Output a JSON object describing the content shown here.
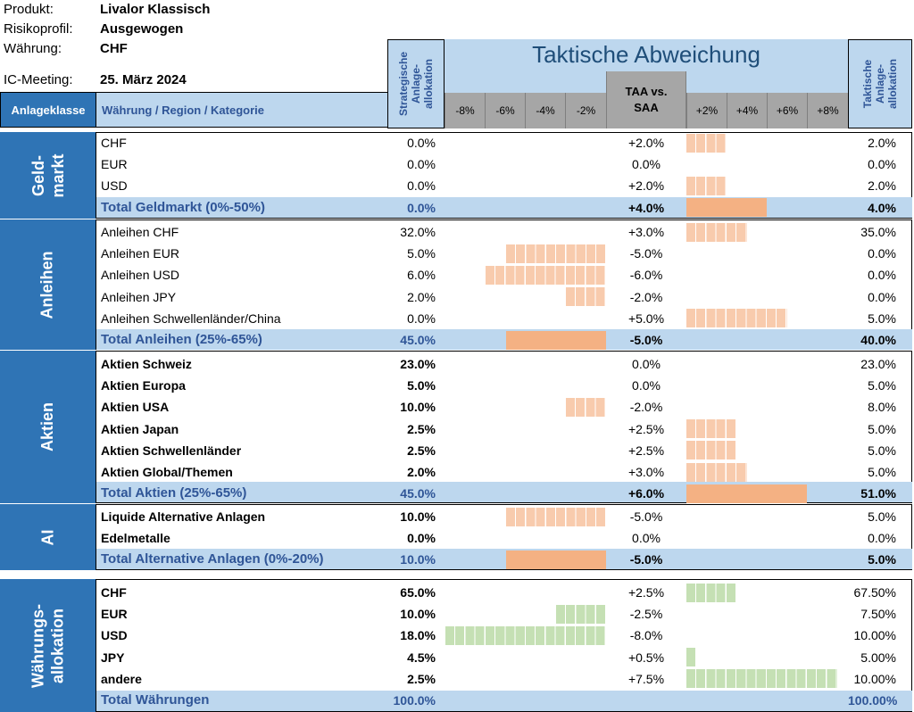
{
  "meta": {
    "produkt_label": "Produkt:",
    "produkt": "Livalor Klassisch",
    "risikoprofil_label": "Risikoprofil:",
    "risikoprofil": "Ausgewogen",
    "waehrung_label": "Währung:",
    "waehrung": "CHF",
    "ic_label": "IC-Meeting:",
    "ic_date": "25. März 2024"
  },
  "header": {
    "anlageklasse": "Anlageklasse",
    "kategorie": "Währung / Region / Kategorie",
    "strategische": "Strategische Anlage-allokation",
    "taktische_title": "Taktische Abweichung",
    "taa_vs_saa": "TAA vs. SAA",
    "taktische_alloc": "Taktische Anlage-allokation",
    "ticks_neg": [
      "-8%",
      "-6%",
      "-4%",
      "-2%"
    ],
    "ticks_pos": [
      "+2%",
      "+4%",
      "+6%",
      "+8%"
    ]
  },
  "colors": {
    "dark_blue": "#2f74b5",
    "light_blue": "#bdd7ee",
    "header_gray": "#a6a6a6",
    "bar_orange": "#f8cbad",
    "bar_orange_total": "#f4b183",
    "bar_green": "#c5e0b4",
    "total_text": "#2f5597"
  },
  "groups": {
    "geldmarkt": {
      "name": "Geld-markt",
      "rows": [
        {
          "label": "CHF",
          "saa": "0.0%",
          "dev": "+2.0%",
          "dev_value": 2.0,
          "taa": "2.0%"
        },
        {
          "label": "EUR",
          "saa": "0.0%",
          "dev": "0.0%",
          "dev_value": 0.0,
          "taa": "0.0%"
        },
        {
          "label": "USD",
          "saa": "0.0%",
          "dev": "+2.0%",
          "dev_value": 2.0,
          "taa": "2.0%"
        }
      ],
      "total": {
        "label": "Total Geldmarkt (0%-50%)",
        "saa": "0.0%",
        "dev": "+4.0%",
        "dev_value": 4.0,
        "taa": "4.0%"
      }
    },
    "anleihen": {
      "name": "Anleihen",
      "rows": [
        {
          "label": "Anleihen CHF",
          "saa": "32.0%",
          "dev": "+3.0%",
          "dev_value": 3.0,
          "taa": "35.0%"
        },
        {
          "label": "Anleihen EUR",
          "saa": "5.0%",
          "dev": "-5.0%",
          "dev_value": -5.0,
          "taa": "0.0%"
        },
        {
          "label": "Anleihen USD",
          "saa": "6.0%",
          "dev": "-6.0%",
          "dev_value": -6.0,
          "taa": "0.0%"
        },
        {
          "label": "Anleihen JPY",
          "saa": "2.0%",
          "dev": "-2.0%",
          "dev_value": -2.0,
          "taa": "0.0%"
        },
        {
          "label": "Anleihen Schwellenländer/China",
          "saa": "0.0%",
          "dev": "+5.0%",
          "dev_value": 5.0,
          "taa": "5.0%"
        }
      ],
      "total": {
        "label": "Total Anleihen (25%-65%)",
        "saa": "45.0%",
        "dev": "-5.0%",
        "dev_value": -5.0,
        "taa": "40.0%"
      }
    },
    "aktien": {
      "name": "Aktien",
      "rows": [
        {
          "label": "Aktien Schweiz",
          "saa": "23.0%",
          "dev": "0.0%",
          "dev_value": 0.0,
          "taa": "23.0%"
        },
        {
          "label": "Aktien Europa",
          "saa": "5.0%",
          "dev": "0.0%",
          "dev_value": 0.0,
          "taa": "5.0%"
        },
        {
          "label": "Aktien USA",
          "saa": "10.0%",
          "dev": "-2.0%",
          "dev_value": -2.0,
          "taa": "8.0%"
        },
        {
          "label": "Aktien Japan",
          "saa": "2.5%",
          "dev": "+2.5%",
          "dev_value": 2.5,
          "taa": "5.0%"
        },
        {
          "label": "Aktien Schwellenländer",
          "saa": "2.5%",
          "dev": "+2.5%",
          "dev_value": 2.5,
          "taa": "5.0%"
        },
        {
          "label": "Aktien Global/Themen",
          "saa": "2.0%",
          "dev": "+3.0%",
          "dev_value": 3.0,
          "taa": "5.0%"
        }
      ],
      "total": {
        "label": "Total Aktien (25%-65%)",
        "saa": "45.0%",
        "dev": "+6.0%",
        "dev_value": 6.0,
        "taa": "51.0%"
      }
    },
    "ai": {
      "name": "AI",
      "rows": [
        {
          "label": "Liquide Alternative Anlagen",
          "saa": "10.0%",
          "dev": "-5.0%",
          "dev_value": -5.0,
          "taa": "5.0%"
        },
        {
          "label": "Edelmetalle",
          "saa": "0.0%",
          "dev": "0.0%",
          "dev_value": 0.0,
          "taa": "0.0%"
        }
      ],
      "total": {
        "label": "Total Alternative Anlagen (0%-20%)",
        "saa": "10.0%",
        "dev": "-5.0%",
        "dev_value": -5.0,
        "taa": "5.0%"
      }
    },
    "waehrung": {
      "name": "Währungs-allokation",
      "rows": [
        {
          "label": "CHF",
          "saa": "65.0%",
          "dev": "+2.5%",
          "dev_value": 2.5,
          "taa": "67.50%"
        },
        {
          "label": "EUR",
          "saa": "10.0%",
          "dev": "-2.5%",
          "dev_value": -2.5,
          "taa": "7.50%"
        },
        {
          "label": "USD",
          "saa": "18.0%",
          "dev": "-8.0%",
          "dev_value": -8.0,
          "taa": "10.00%"
        },
        {
          "label": "JPY",
          "saa": "4.5%",
          "dev": "+0.5%",
          "dev_value": 0.5,
          "taa": "5.00%"
        },
        {
          "label": "andere",
          "saa": "2.5%",
          "dev": "+7.5%",
          "dev_value": 7.5,
          "taa": "10.00%"
        }
      ],
      "total": {
        "label": "Total Währungen",
        "saa": "100.0%",
        "taa": "100.00%"
      }
    }
  }
}
